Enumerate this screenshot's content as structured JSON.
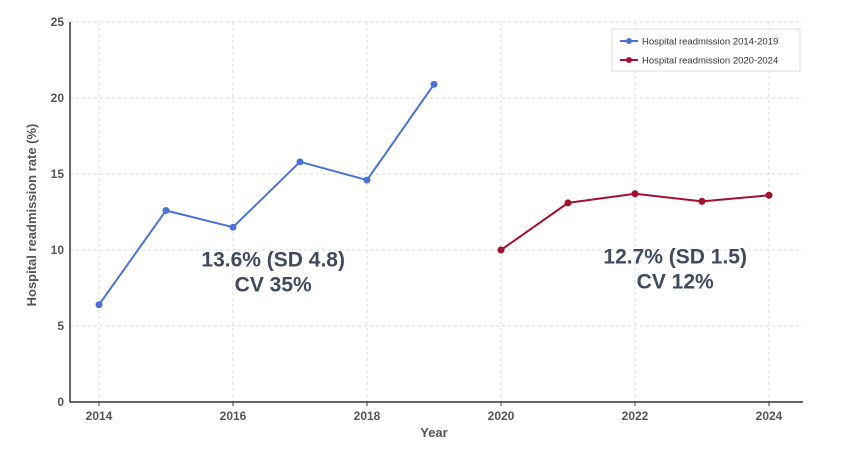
{
  "chart_data": {
    "type": "line",
    "xlabel": "Year",
    "ylabel": "Hospital readmission rate (%)",
    "xlim": [
      2014,
      2024
    ],
    "ylim": [
      0,
      25
    ],
    "xticks": [
      2014,
      2016,
      2018,
      2020,
      2022,
      2024
    ],
    "yticks": [
      0,
      5,
      10,
      15,
      20,
      25
    ],
    "grid": true,
    "legend": "top-right",
    "series": [
      {
        "name": "Hospital readmission 2014-2019",
        "color": "#4a72d6",
        "x": [
          2014,
          2015,
          2016,
          2017,
          2018,
          2019
        ],
        "y": [
          6.4,
          12.6,
          11.5,
          15.8,
          14.6,
          20.9
        ]
      },
      {
        "name": "Hospital readmission 2020-2024",
        "color": "#a5102f",
        "x": [
          2020,
          2021,
          2022,
          2023,
          2024
        ],
        "y": [
          10.0,
          13.1,
          13.7,
          13.2,
          13.6
        ]
      }
    ],
    "annotations": [
      {
        "lines": [
          "13.6% (SD 4.8)",
          "CV 35%"
        ],
        "x": 2016.6,
        "y": 8.0
      },
      {
        "lines": [
          "12.7% (SD 1.5)",
          "CV 12%"
        ],
        "x": 2022.6,
        "y": 8.2
      }
    ]
  }
}
